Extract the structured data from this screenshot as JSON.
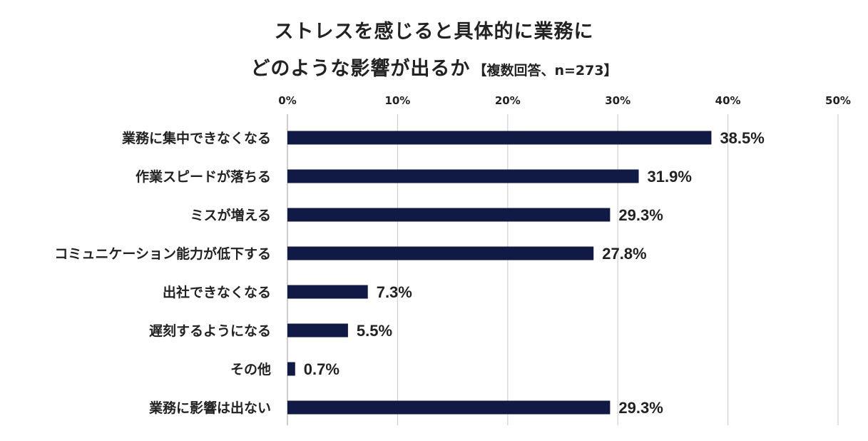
{
  "title": {
    "line1": "ストレスを感じると具体的に業務に",
    "line2": "どのような影響が出るか",
    "note": "【複数回答、n=273】"
  },
  "chart_data": {
    "type": "bar",
    "orientation": "horizontal",
    "categories": [
      "業務に集中できなくなる",
      "作業スピードが落ちる",
      "ミスが増える",
      "コミュニケーション能力が低下する",
      "出社できなくなる",
      "遅刻するようになる",
      "その他",
      "業務に影響は出ない"
    ],
    "values": [
      38.5,
      31.9,
      29.3,
      27.8,
      7.3,
      5.5,
      0.7,
      29.3
    ],
    "value_labels": [
      "38.5%",
      "31.9%",
      "29.3%",
      "27.8%",
      "7.3%",
      "5.5%",
      "0.7%",
      "29.3%"
    ],
    "xlim": [
      0,
      50
    ],
    "ticks": [
      0,
      10,
      20,
      30,
      40,
      50
    ],
    "tick_labels": [
      "0%",
      "10%",
      "20%",
      "30%",
      "40%",
      "50%"
    ],
    "x_axis_position": "top",
    "grid": true,
    "legend": "none",
    "bar_color": "#111a45",
    "grid_color": "#d0d0d0"
  }
}
